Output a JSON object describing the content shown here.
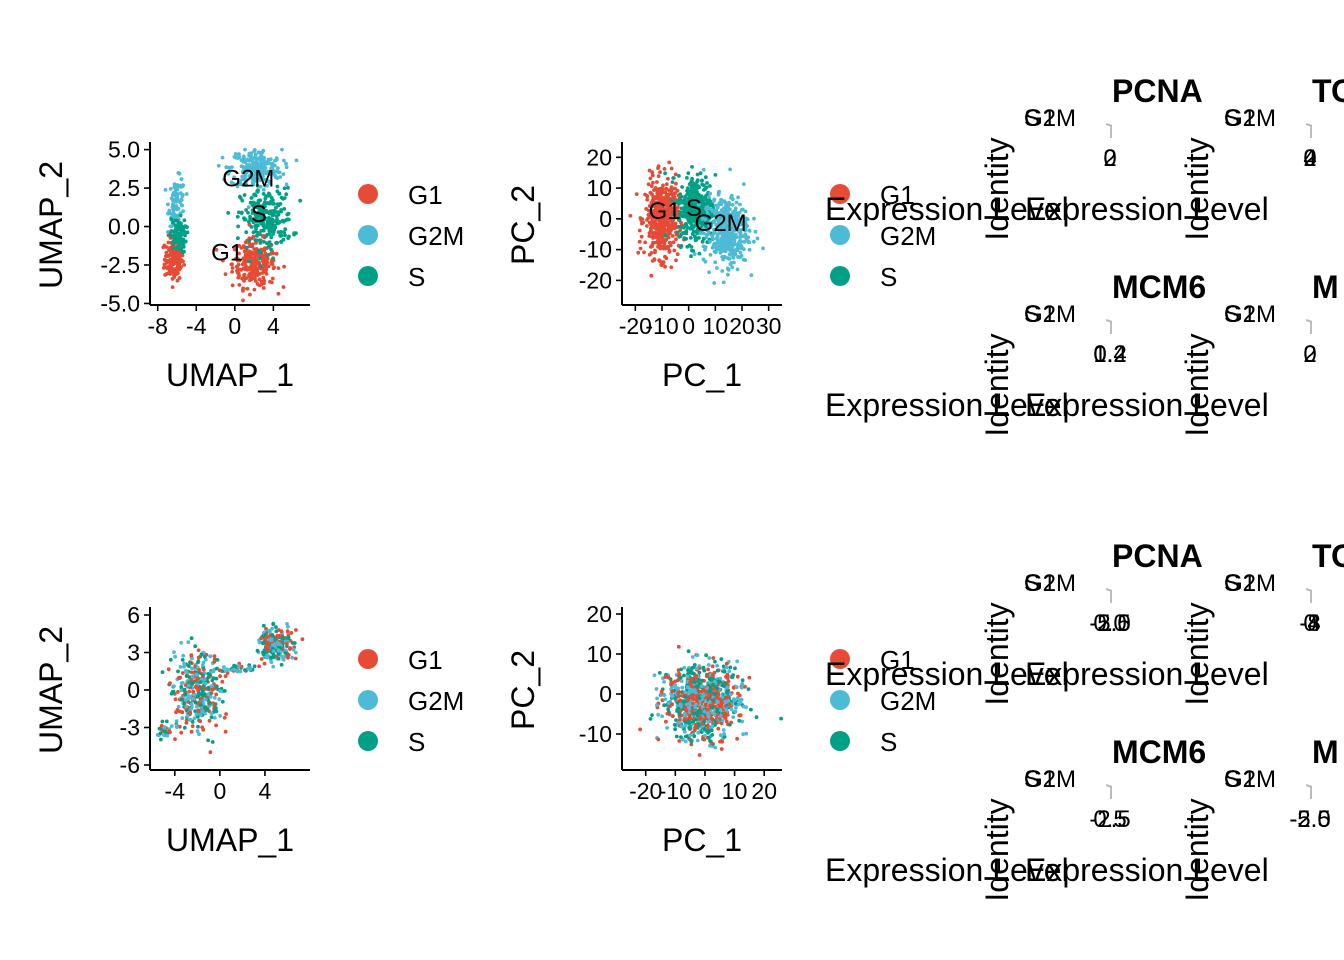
{
  "palette": {
    "G1": "#E64B35",
    "G2M": "#4DBBD5",
    "S": "#00A087"
  },
  "legend": {
    "labels": [
      "G1",
      "G2M",
      "S"
    ]
  },
  "ridge_labels": {
    "xlabel": "Expression Level",
    "ylabel": "Identity",
    "ytick_stack": [
      "G1",
      "G2M",
      "S"
    ]
  },
  "chart_data": [
    {
      "type": "scatter",
      "panel": "row1-umap",
      "xlabel": "UMAP_1",
      "ylabel": "UMAP_2",
      "xlim": [
        -8.8,
        7.8
      ],
      "ylim": [
        -5.1,
        5.3
      ],
      "xticks": [
        "-8",
        "-4",
        "0",
        "4"
      ],
      "xtick_values": [
        -8,
        -4,
        0,
        4
      ],
      "yticks": [
        "5.0",
        "2.5",
        "0.0",
        "-2.5",
        "-5.0"
      ],
      "ytick_values": [
        5,
        2.5,
        0,
        -2.5,
        -5
      ],
      "cluster_labels": [
        {
          "text": "G2M",
          "x": 1.4,
          "y": 2.6
        },
        {
          "text": "S",
          "x": 2.5,
          "y": 0.3
        },
        {
          "text": "G1",
          "x": -0.8,
          "y": -2.2
        }
      ],
      "clusters": [
        {
          "group": "G1",
          "n": 160,
          "cx": -6.3,
          "cy": -2.1,
          "sx": 0.7,
          "sy": 1.0
        },
        {
          "group": "G1",
          "n": 260,
          "cx": 2.0,
          "cy": -2.4,
          "sx": 1.6,
          "sy": 1.1
        },
        {
          "group": "G2M",
          "n": 90,
          "cx": -6.0,
          "cy": 1.6,
          "sx": 0.6,
          "sy": 1.1
        },
        {
          "group": "G2M",
          "n": 230,
          "cx": 2.2,
          "cy": 3.8,
          "sx": 1.9,
          "sy": 0.9
        },
        {
          "group": "S",
          "n": 80,
          "cx": -5.9,
          "cy": -0.6,
          "sx": 0.6,
          "sy": 0.8
        },
        {
          "group": "S",
          "n": 240,
          "cx": 3.3,
          "cy": 0.5,
          "sx": 1.9,
          "sy": 1.4
        }
      ]
    },
    {
      "type": "scatter",
      "panel": "row1-pca",
      "xlabel": "PC_1",
      "ylabel": "PC_2",
      "xlim": [
        -25,
        35
      ],
      "ylim": [
        -28,
        24
      ],
      "xticks": [
        "-20",
        "-10",
        "0",
        "10",
        "20",
        "30"
      ],
      "xtick_values": [
        -20,
        -10,
        0,
        10,
        20,
        30
      ],
      "yticks": [
        "20",
        "10",
        "0",
        "-10",
        "-20"
      ],
      "ytick_values": [
        20,
        10,
        0,
        -10,
        -20
      ],
      "cluster_labels": [
        {
          "text": "G1",
          "x": -9,
          "y": 0
        },
        {
          "text": "S",
          "x": 2,
          "y": 1
        },
        {
          "text": "G2M",
          "x": 12,
          "y": -4
        }
      ],
      "clusters": [
        {
          "group": "G1",
          "n": 480,
          "cx": -10,
          "cy": 0,
          "sx": 4.5,
          "sy": 9
        },
        {
          "group": "S",
          "n": 360,
          "cx": 3,
          "cy": 3,
          "sx": 5,
          "sy": 8
        },
        {
          "group": "G2M",
          "n": 420,
          "cx": 14,
          "cy": -4,
          "sx": 6,
          "sy": 8
        }
      ]
    },
    {
      "type": "scatter",
      "panel": "row2-umap",
      "xlabel": "UMAP_1",
      "ylabel": "UMAP_2",
      "xlim": [
        -6.2,
        8.0
      ],
      "ylim": [
        -6.4,
        6.4
      ],
      "xticks": [
        "-4",
        "0",
        "4"
      ],
      "xtick_values": [
        -4,
        0,
        4
      ],
      "yticks": [
        "6",
        "3",
        "0",
        "-3",
        "-6"
      ],
      "ytick_values": [
        6,
        3,
        0,
        -3,
        -6
      ],
      "clusters": [
        {
          "group": "mixed",
          "n": 360,
          "cx": -2.0,
          "cy": 0.0,
          "sx": 1.5,
          "sy": 2.3
        },
        {
          "group": "mixed",
          "n": 220,
          "cx": 5.0,
          "cy": 3.6,
          "sx": 1.1,
          "sy": 0.9
        },
        {
          "group": "mixed",
          "n": 40,
          "cx": 1.5,
          "cy": 1.7,
          "sx": 1.2,
          "sy": 0.25
        },
        {
          "group": "mixed",
          "n": 30,
          "cx": -4.8,
          "cy": -3.3,
          "sx": 0.6,
          "sy": 0.5
        }
      ]
    },
    {
      "type": "scatter",
      "panel": "row2-pca",
      "xlabel": "PC_1",
      "ylabel": "PC_2",
      "xlim": [
        -28,
        26
      ],
      "ylim": [
        -19,
        21
      ],
      "xticks": [
        "-20",
        "-10",
        "0",
        "10",
        "20"
      ],
      "xtick_values": [
        -20,
        -10,
        0,
        10,
        20
      ],
      "yticks": [
        "20",
        "10",
        "0",
        "-10"
      ],
      "ytick_values": [
        20,
        10,
        0,
        -10
      ],
      "clusters": [
        {
          "group": "mixed",
          "n": 900,
          "cx": -1,
          "cy": -2,
          "sx": 9,
          "sy": 6.5
        }
      ]
    },
    {
      "type": "ridge",
      "panel": "row1-ridge-a",
      "title": "PCNA",
      "x_ticks_overlap": [
        "2",
        "0"
      ]
    },
    {
      "type": "ridge",
      "panel": "row1-ridge-b",
      "title": "TO",
      "x_ticks_overlap": [
        "2",
        "0",
        "4"
      ]
    },
    {
      "type": "ridge",
      "panel": "row1-ridge-c",
      "title": "MCM6",
      "x_ticks_overlap": [
        "0.2",
        "0.4",
        "1.2"
      ]
    },
    {
      "type": "ridge",
      "panel": "row1-ridge-d",
      "title": "M",
      "x_ticks_overlap": [
        "2",
        "0"
      ]
    },
    {
      "type": "ridge",
      "panel": "row2-ridge-a",
      "title": "PCNA",
      "x_ticks_overlap": [
        "-2.5",
        "0.0",
        "-5.0"
      ]
    },
    {
      "type": "ridge",
      "panel": "row2-ridge-b",
      "title": "TO",
      "x_ticks_overlap": [
        "-4",
        "-8",
        "0"
      ]
    },
    {
      "type": "ridge",
      "panel": "row2-ridge-c",
      "title": "MCM6",
      "x_ticks_overlap": [
        "-2.5",
        "0.5"
      ]
    },
    {
      "type": "ridge",
      "panel": "row2-ridge-d",
      "title": "M",
      "x_ticks_overlap": [
        "-2.5",
        "-5.0"
      ]
    }
  ]
}
